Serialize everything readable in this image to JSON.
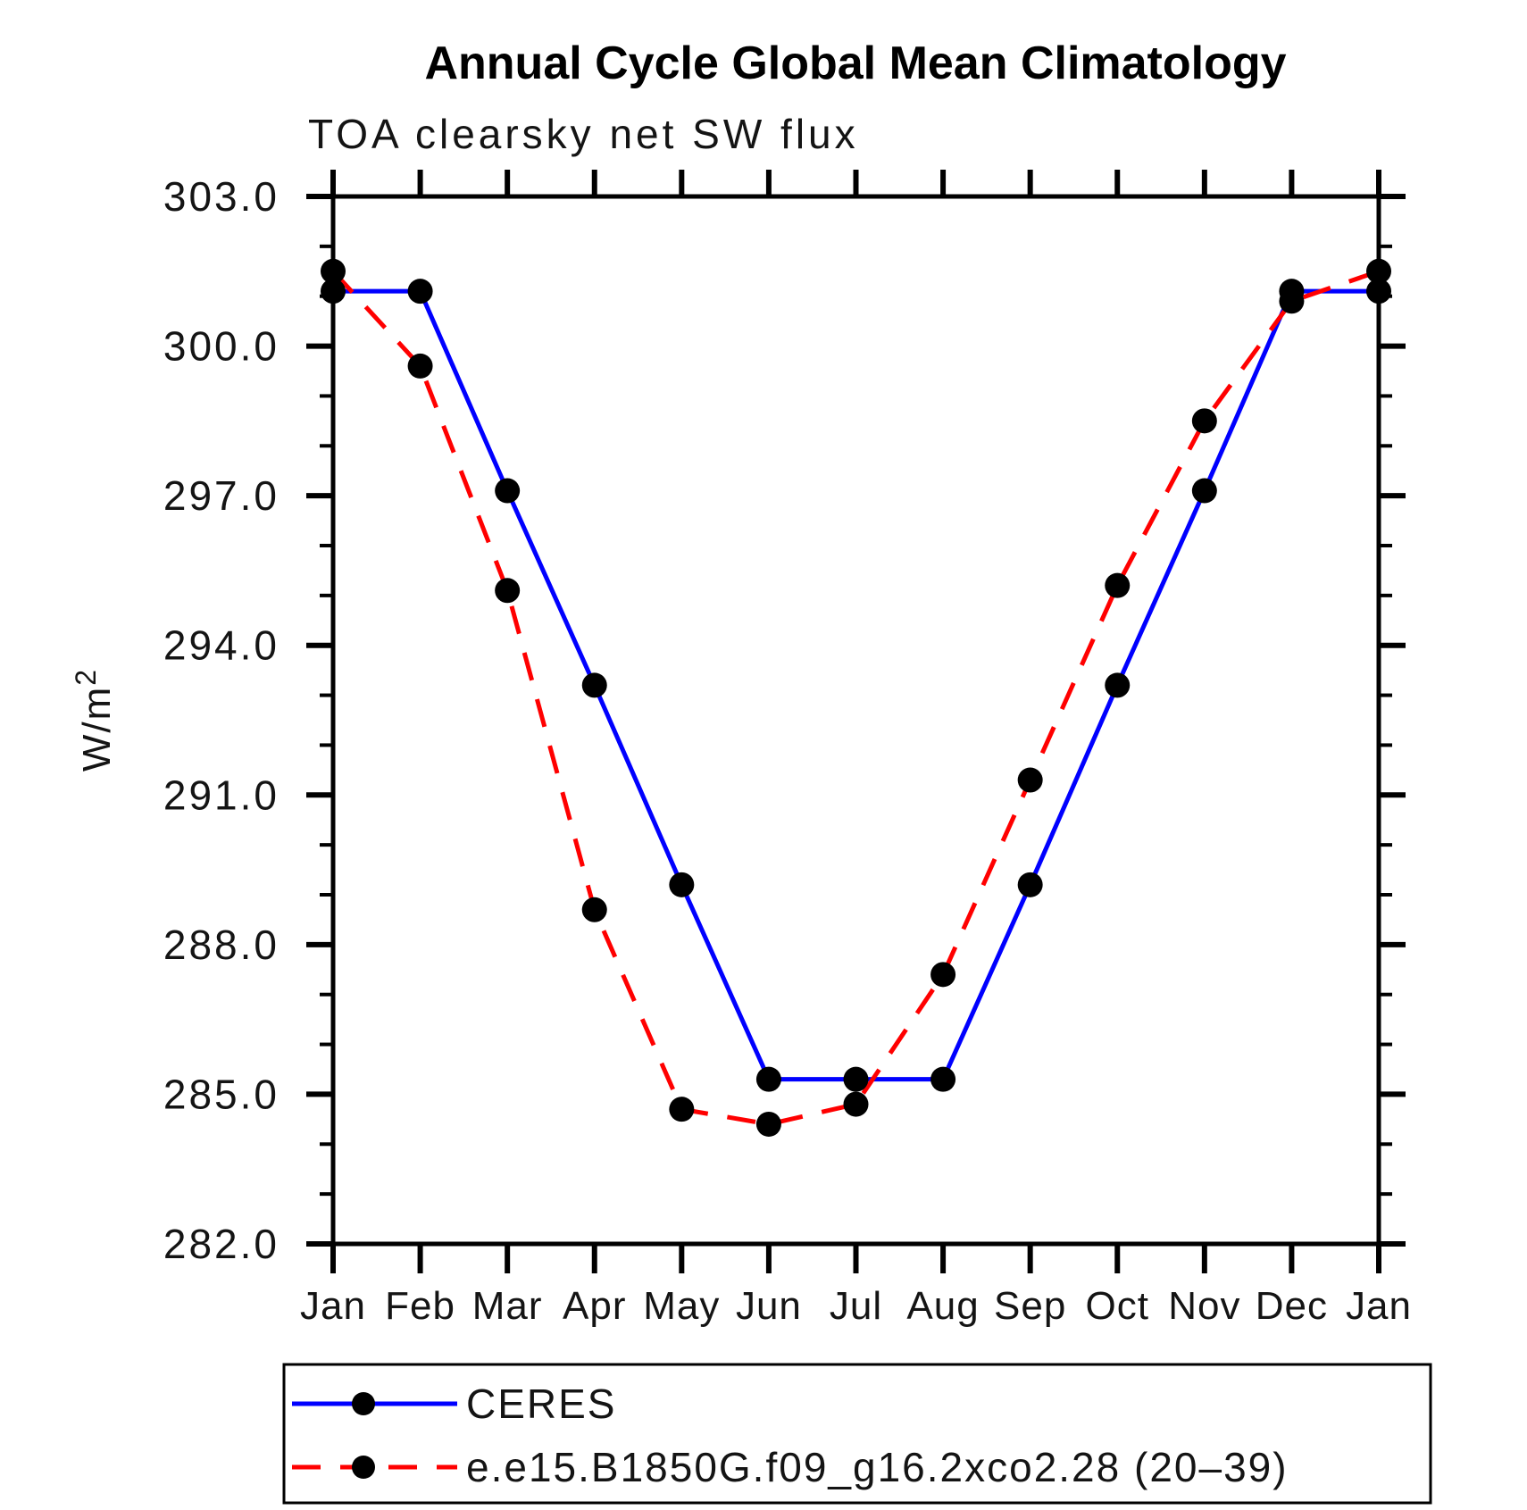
{
  "chart_data": {
    "type": "line",
    "title": "Annual Cycle Global Mean Climatology",
    "subtitle": "TOA clearsky net SW flux",
    "xlabel": "",
    "ylabel": "W/m²",
    "categories": [
      "Jan",
      "Feb",
      "Mar",
      "Apr",
      "May",
      "Jun",
      "Jul",
      "Aug",
      "Sep",
      "Oct",
      "Nov",
      "Dec",
      "Jan"
    ],
    "ylim": [
      282.0,
      303.0
    ],
    "ytick_major_step": 3.0,
    "ytick_minor_step": 1.0,
    "ytick_labels": [
      "282.0",
      "285.0",
      "288.0",
      "291.0",
      "294.0",
      "297.0",
      "300.0",
      "303.0"
    ],
    "grid": false,
    "legend_position": "bottom-left",
    "series": [
      {
        "name": "CERES",
        "line_color": "#0000ff",
        "line_style": "solid",
        "marker": "filled-circle",
        "marker_color": "#000000",
        "values": [
          301.1,
          301.1,
          297.1,
          293.2,
          289.2,
          285.3,
          285.3,
          285.3,
          289.2,
          293.2,
          297.1,
          301.1,
          301.1
        ]
      },
      {
        "name": "e.e15.B1850G.f09_g16.2xco2.28 (20–39)",
        "line_color": "#ff0000",
        "line_style": "dashed",
        "marker": "filled-circle",
        "marker_color": "#000000",
        "values": [
          301.5,
          299.6,
          295.1,
          288.7,
          284.7,
          284.4,
          284.8,
          287.4,
          291.3,
          295.2,
          298.5,
          300.9,
          301.5
        ]
      }
    ]
  },
  "colors": {
    "background": "#ffffff",
    "axis": "#000000",
    "text": "#000000",
    "ceres_line": "#0000ff",
    "model_line": "#ff0000",
    "marker": "#000000"
  }
}
